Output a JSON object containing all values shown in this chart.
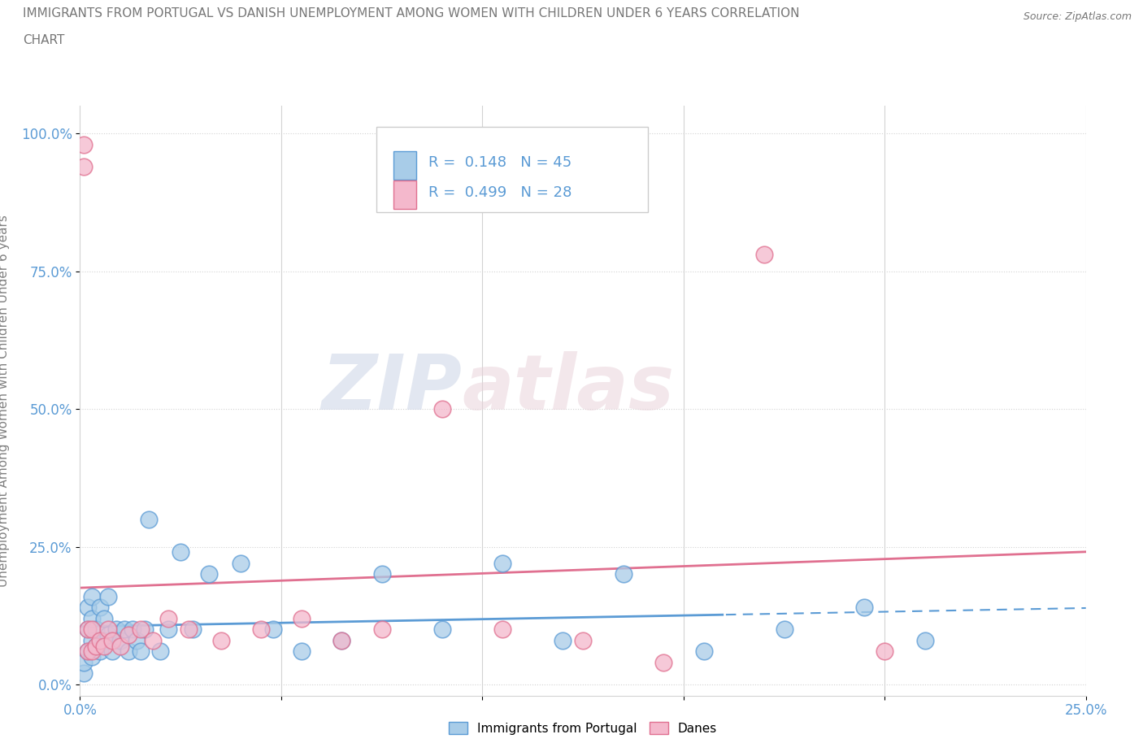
{
  "title_line1": "IMMIGRANTS FROM PORTUGAL VS DANISH UNEMPLOYMENT AMONG WOMEN WITH CHILDREN UNDER 6 YEARS CORRELATION",
  "title_line2": "CHART",
  "source": "Source: ZipAtlas.com",
  "ylabel": "Unemployment Among Women with Children Under 6 years",
  "xmin": 0.0,
  "xmax": 0.25,
  "ymin": -0.02,
  "ymax": 1.05,
  "yticks": [
    0.0,
    0.25,
    0.5,
    0.75,
    1.0
  ],
  "ytick_labels": [
    "0.0%",
    "25.0%",
    "50.0%",
    "75.0%",
    "100.0%"
  ],
  "xticks": [
    0.0,
    0.05,
    0.1,
    0.15,
    0.2,
    0.25
  ],
  "xtick_labels": [
    "0.0%",
    "",
    "",
    "",
    "",
    "25.0%"
  ],
  "blue_color": "#a8cce8",
  "pink_color": "#f4b8cc",
  "blue_edge_color": "#5b9bd5",
  "pink_edge_color": "#e07090",
  "blue_line_color": "#5b9bd5",
  "pink_line_color": "#e07090",
  "R_blue": 0.148,
  "N_blue": 45,
  "R_pink": 0.499,
  "N_pink": 28,
  "legend_label_blue": "Immigrants from Portugal",
  "legend_label_pink": "Danes",
  "watermark_zip": "ZIP",
  "watermark_atlas": "atlas",
  "blue_scatter_x": [
    0.001,
    0.001,
    0.002,
    0.002,
    0.002,
    0.003,
    0.003,
    0.003,
    0.003,
    0.004,
    0.004,
    0.005,
    0.005,
    0.006,
    0.006,
    0.007,
    0.007,
    0.008,
    0.009,
    0.01,
    0.011,
    0.012,
    0.013,
    0.014,
    0.015,
    0.016,
    0.017,
    0.02,
    0.022,
    0.025,
    0.028,
    0.032,
    0.04,
    0.048,
    0.055,
    0.065,
    0.075,
    0.09,
    0.105,
    0.12,
    0.135,
    0.155,
    0.175,
    0.195,
    0.21
  ],
  "blue_scatter_y": [
    0.02,
    0.04,
    0.06,
    0.1,
    0.14,
    0.05,
    0.08,
    0.12,
    0.16,
    0.07,
    0.1,
    0.06,
    0.14,
    0.08,
    0.12,
    0.09,
    0.16,
    0.06,
    0.1,
    0.08,
    0.1,
    0.06,
    0.1,
    0.08,
    0.06,
    0.1,
    0.3,
    0.06,
    0.1,
    0.24,
    0.1,
    0.2,
    0.22,
    0.1,
    0.06,
    0.08,
    0.2,
    0.1,
    0.22,
    0.08,
    0.2,
    0.06,
    0.1,
    0.14,
    0.08
  ],
  "pink_scatter_x": [
    0.001,
    0.001,
    0.002,
    0.002,
    0.003,
    0.003,
    0.004,
    0.005,
    0.006,
    0.007,
    0.008,
    0.01,
    0.012,
    0.015,
    0.018,
    0.022,
    0.027,
    0.035,
    0.045,
    0.055,
    0.065,
    0.075,
    0.09,
    0.105,
    0.125,
    0.145,
    0.17,
    0.2
  ],
  "pink_scatter_y": [
    0.98,
    0.94,
    0.06,
    0.1,
    0.06,
    0.1,
    0.07,
    0.08,
    0.07,
    0.1,
    0.08,
    0.07,
    0.09,
    0.1,
    0.08,
    0.12,
    0.1,
    0.08,
    0.1,
    0.12,
    0.08,
    0.1,
    0.5,
    0.1,
    0.08,
    0.04,
    0.78,
    0.06
  ],
  "blue_line_solid_end": 0.16,
  "blue_line_dashed_start": 0.16
}
